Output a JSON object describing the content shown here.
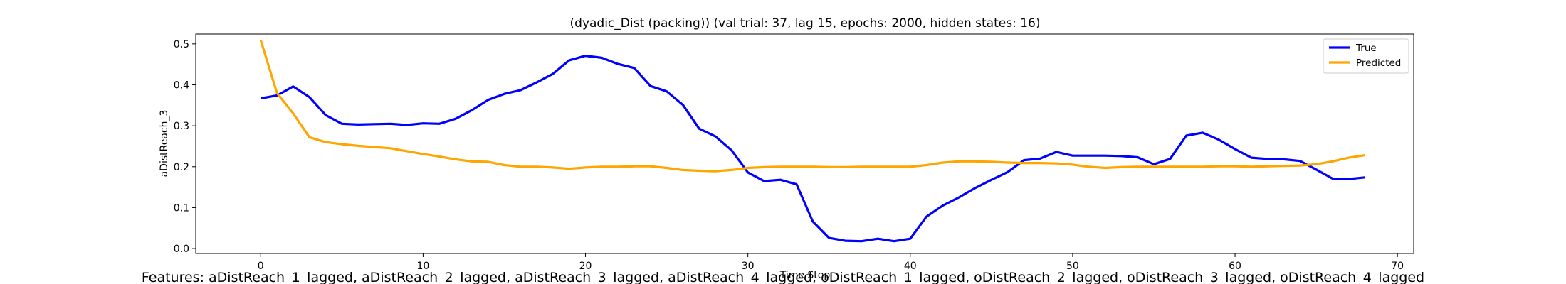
{
  "chart_data": {
    "type": "line",
    "title": "(dyadic_Dist (packing)) (val trial: 37, lag 15, epochs: 2000, hidden states: 16)",
    "xlabel": "Time Step",
    "ylabel": "aDistReach_3",
    "xlim": [
      -4,
      71
    ],
    "ylim": [
      -0.012,
      0.524
    ],
    "xticks": [
      0,
      10,
      20,
      30,
      40,
      50,
      60,
      70
    ],
    "yticks": [
      0.0,
      0.1,
      0.2,
      0.3,
      0.4,
      0.5
    ],
    "grid": false,
    "legend_position": "top-right",
    "series": [
      {
        "name": "True",
        "color": "#0000ff",
        "x": [
          0,
          1,
          2,
          3,
          4,
          5,
          6,
          7,
          8,
          9,
          10,
          11,
          12,
          13,
          14,
          15,
          16,
          17,
          18,
          19,
          20,
          21,
          22,
          23,
          24,
          25,
          26,
          27,
          28,
          29,
          30,
          31,
          32,
          33,
          34,
          35,
          36,
          37,
          38,
          39,
          40,
          41,
          42,
          43,
          44,
          45,
          46,
          47,
          48,
          49,
          50,
          51,
          52,
          53,
          54,
          55,
          56,
          57,
          58,
          59,
          60,
          61,
          62,
          63,
          64,
          65,
          66,
          67,
          68
        ],
        "y": [
          0.367,
          0.374,
          0.396,
          0.37,
          0.326,
          0.305,
          0.303,
          0.304,
          0.305,
          0.302,
          0.306,
          0.305,
          0.317,
          0.338,
          0.363,
          0.378,
          0.387,
          0.406,
          0.427,
          0.46,
          0.471,
          0.466,
          0.451,
          0.441,
          0.397,
          0.384,
          0.351,
          0.293,
          0.274,
          0.24,
          0.186,
          0.165,
          0.168,
          0.157,
          0.066,
          0.026,
          0.019,
          0.018,
          0.024,
          0.018,
          0.024,
          0.078,
          0.105,
          0.125,
          0.148,
          0.168,
          0.187,
          0.216,
          0.22,
          0.236,
          0.227,
          0.227,
          0.227,
          0.226,
          0.223,
          0.206,
          0.219,
          0.276,
          0.283,
          0.266,
          0.243,
          0.222,
          0.219,
          0.218,
          0.214,
          0.193,
          0.171,
          0.17,
          0.174
        ]
      },
      {
        "name": "Predicted",
        "color": "#ffa500",
        "x": [
          0,
          1,
          2,
          3,
          4,
          5,
          6,
          7,
          8,
          9,
          10,
          11,
          12,
          13,
          14,
          15,
          16,
          17,
          18,
          19,
          20,
          21,
          22,
          23,
          24,
          25,
          26,
          27,
          28,
          29,
          30,
          31,
          32,
          33,
          34,
          35,
          36,
          37,
          38,
          39,
          40,
          41,
          42,
          43,
          44,
          45,
          46,
          47,
          48,
          49,
          50,
          51,
          52,
          53,
          54,
          55,
          56,
          57,
          58,
          59,
          60,
          61,
          62,
          63,
          64,
          65,
          66,
          67,
          68
        ],
        "y": [
          0.509,
          0.38,
          0.33,
          0.272,
          0.26,
          0.255,
          0.251,
          0.248,
          0.245,
          0.238,
          0.231,
          0.225,
          0.218,
          0.213,
          0.212,
          0.204,
          0.2,
          0.2,
          0.198,
          0.195,
          0.198,
          0.2,
          0.2,
          0.201,
          0.201,
          0.197,
          0.192,
          0.19,
          0.189,
          0.192,
          0.197,
          0.199,
          0.2,
          0.2,
          0.2,
          0.199,
          0.199,
          0.2,
          0.2,
          0.2,
          0.2,
          0.204,
          0.21,
          0.213,
          0.213,
          0.212,
          0.21,
          0.209,
          0.209,
          0.208,
          0.205,
          0.2,
          0.197,
          0.199,
          0.2,
          0.2,
          0.2,
          0.2,
          0.2,
          0.201,
          0.201,
          0.2,
          0.201,
          0.202,
          0.203,
          0.206,
          0.213,
          0.222,
          0.228
        ]
      }
    ]
  },
  "footer": {
    "features_text": "Features: aDistReach_1_lagged, aDistReach_2_lagged, aDistReach_3_lagged, aDistReach_4_lagged, oDistReach_1_lagged, oDistReach_2_lagged, oDistReach_3_lagged, oDistReach_4_lagged"
  }
}
